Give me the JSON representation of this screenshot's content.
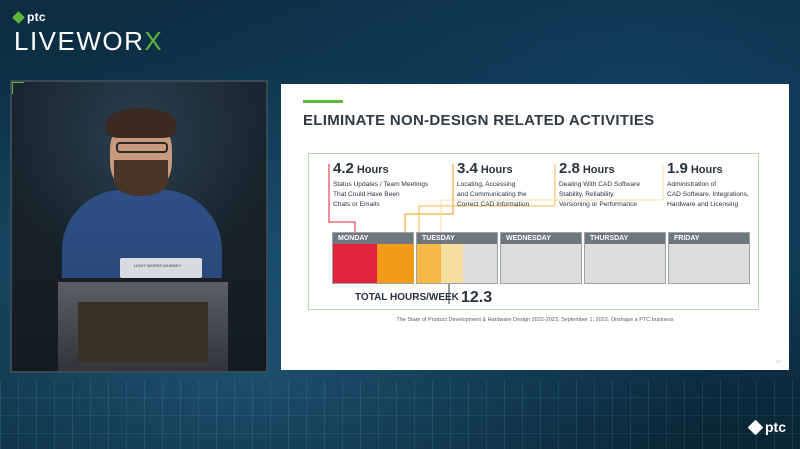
{
  "brand": {
    "company": "ptc",
    "event_prefix": "LIVEWOR",
    "event_suffix": "X"
  },
  "video": {
    "laptop_sticker": "LIGHT WORKS WHISKEY"
  },
  "slide": {
    "title": "ELIMINATE NON-DESIGN RELATED ACTIVITIES",
    "stats": [
      {
        "value": "4.2",
        "unit": "Hours",
        "desc": [
          "Status Updates / Team Meetings",
          "That Could Have Been",
          "Chats or Emails"
        ],
        "color": "#e0223a"
      },
      {
        "value": "3.4",
        "unit": "Hours",
        "desc": [
          "Locating, Accessing",
          "and Communicating the",
          "Correct CAD Information"
        ],
        "color": "#f29a1a"
      },
      {
        "value": "2.8",
        "unit": "Hours",
        "desc": [
          "Dealing With CAD Software",
          "Stability, Reliability,",
          "Versioning or Performance"
        ],
        "color": "#f7b845"
      },
      {
        "value": "1.9",
        "unit": "Hours",
        "desc": [
          "Administration of",
          "CAD Software, Integrations,",
          "Hardware and Licensing"
        ],
        "color": "#f6dfa0"
      }
    ],
    "days": [
      "MONDAY",
      "TUESDAY",
      "WEDNESDAY",
      "THURSDAY",
      "FRIDAY"
    ],
    "total_label": "TOTAL HOURS/WEEK",
    "total_value": "12.3",
    "source": "The State of Product Development & Hardware Design 2022-2023, September 1, 2022. Onshape a PTC business",
    "slide_number": "17"
  },
  "footer": {
    "logo_text": "ptc"
  }
}
